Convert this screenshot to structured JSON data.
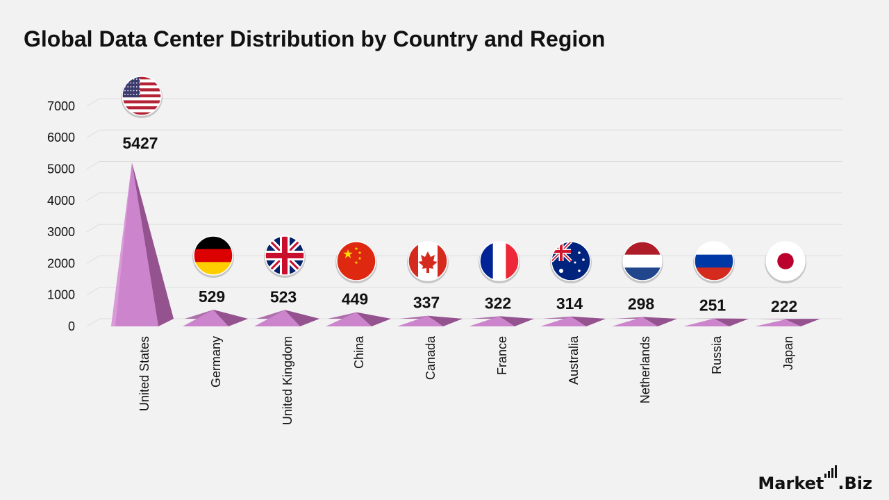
{
  "title": "Global Data Center Distribution by Country and Region",
  "brand": {
    "name_a": "Market",
    "name_b": ".Biz"
  },
  "chart_data": {
    "type": "bar",
    "title": "Global Data Center Distribution by Country and Region",
    "xlabel": "",
    "ylabel": "",
    "categories": [
      "United States",
      "Germany",
      "United Kingdom",
      "China",
      "Canada",
      "France",
      "Australia",
      "Netherlands",
      "Russia",
      "Japan"
    ],
    "values": [
      5427,
      529,
      523,
      449,
      337,
      322,
      314,
      298,
      251,
      222
    ],
    "ylim": [
      0,
      7000
    ],
    "yticks": [
      0,
      1000,
      2000,
      3000,
      4000,
      5000,
      6000,
      7000
    ],
    "grid": true,
    "legend": "none",
    "bar_colors": {
      "front": "#cc85cc",
      "side": "#94528f",
      "top": "#ad70ab"
    },
    "flag_icons": [
      "us-flag-icon",
      "germany-flag-icon",
      "uk-flag-icon",
      "china-flag-icon",
      "canada-flag-icon",
      "france-flag-icon",
      "australia-flag-icon",
      "netherlands-flag-icon",
      "russia-flag-icon",
      "japan-flag-icon"
    ]
  }
}
